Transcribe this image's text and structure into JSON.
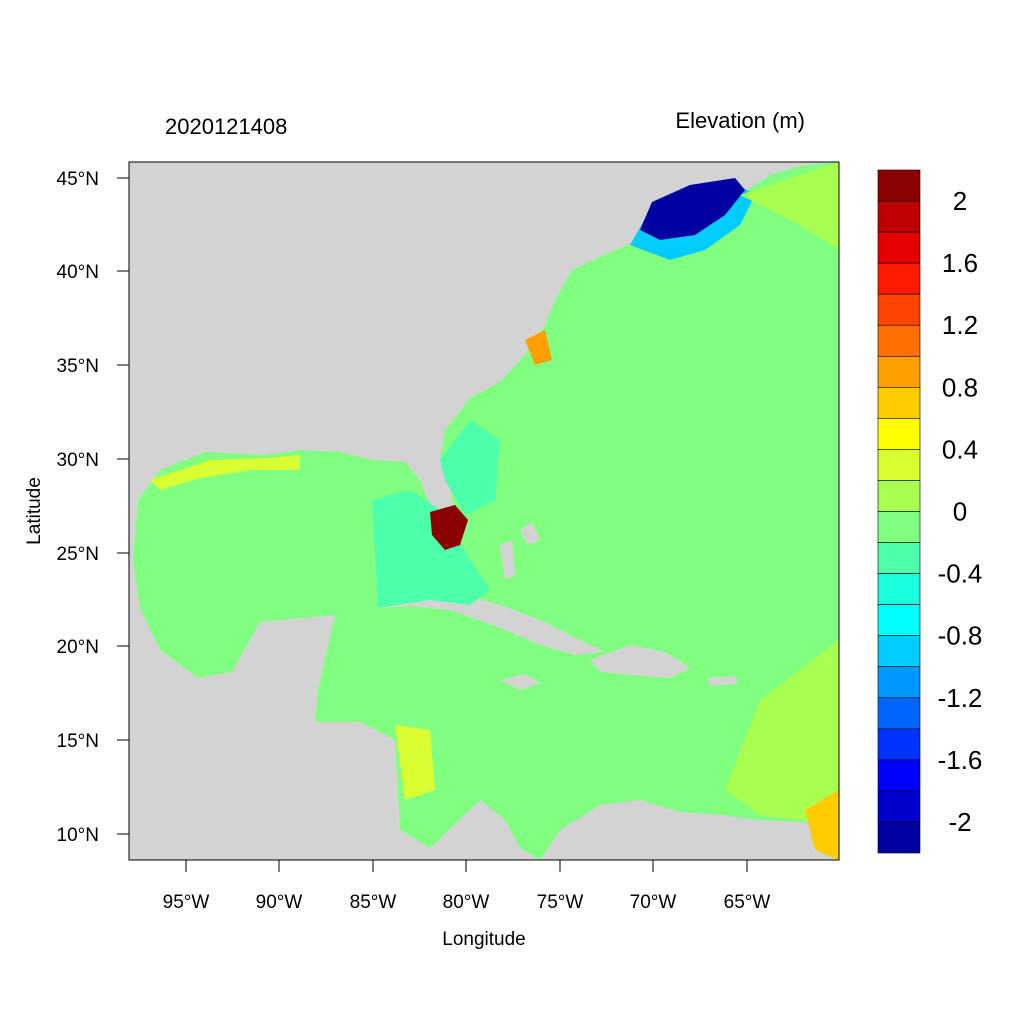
{
  "header": {
    "left_title": "2020121408",
    "right_title": "Elevation (m)"
  },
  "axes": {
    "xlabel": "Longitude",
    "ylabel": "Latitude",
    "x_ticks": [
      "95°W",
      "90°W",
      "85°W",
      "80°W",
      "75°W",
      "70°W",
      "65°W"
    ],
    "y_ticks": [
      "45°N",
      "40°N",
      "35°N",
      "30°N",
      "25°N",
      "20°N",
      "15°N",
      "10°N"
    ]
  },
  "colors": {
    "land": "#d3d3d3",
    "neutral_water": "#80ff80"
  },
  "colorbar": {
    "labels": [
      "2",
      "1.6",
      "1.2",
      "0.8",
      "0.4",
      "0",
      "-0.4",
      "-0.8",
      "-1.2",
      "-1.6",
      "-2"
    ],
    "colors_top_to_bottom": [
      "#8b0000",
      "#bf0000",
      "#e60000",
      "#ff1a00",
      "#ff4500",
      "#ff7000",
      "#ffa000",
      "#ffcc00",
      "#ffff00",
      "#d9ff33",
      "#a8ff50",
      "#80ff80",
      "#4dffaa",
      "#1affdd",
      "#00ffff",
      "#00ccff",
      "#0099ff",
      "#0066ff",
      "#0033ff",
      "#0000ff",
      "#0000cc",
      "#0000a0"
    ]
  }
}
